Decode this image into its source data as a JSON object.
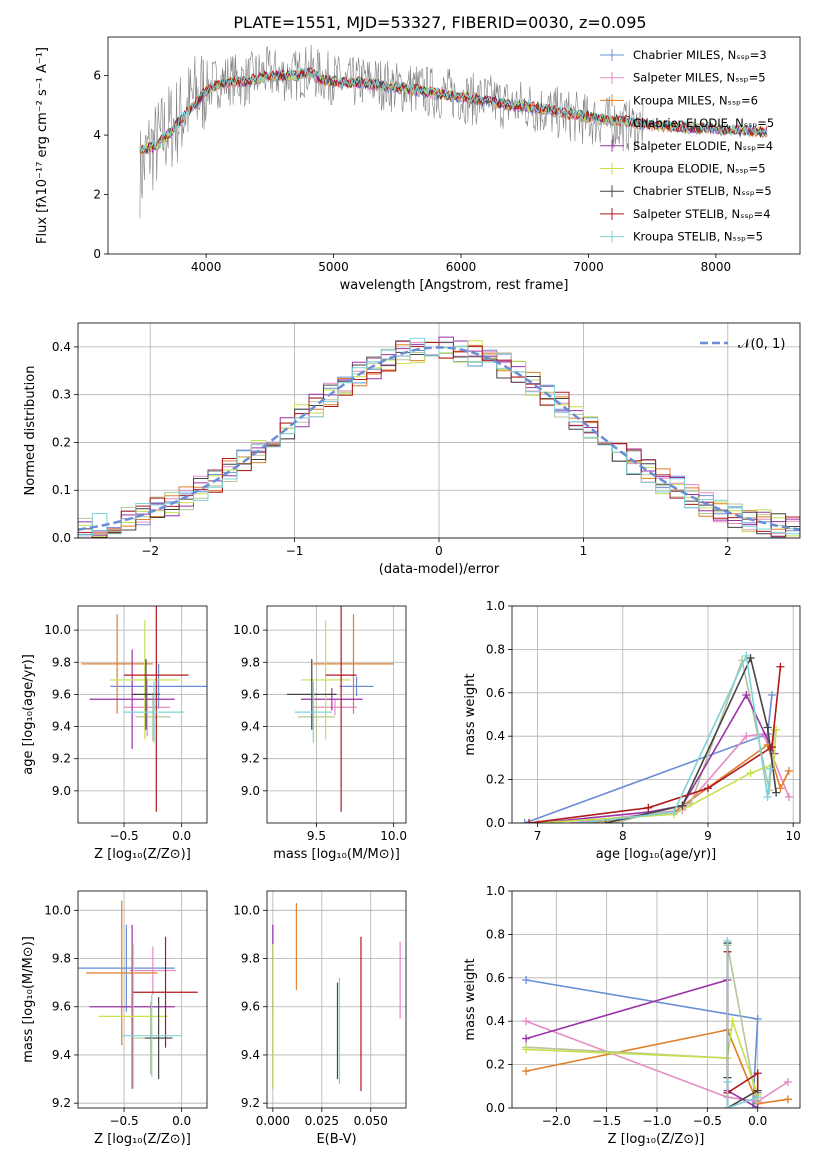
{
  "figure": {
    "title": "PLATE=1551, MJD=53327, FIBERID=0030, z=0.095",
    "colors": {
      "Chabrier MILES": "#6a8ed6",
      "Salpeter MILES": "#e68ac3",
      "Kroupa MILES": "#e07f2a",
      "Chabrier ELODIE": "#b8c59a",
      "Salpeter ELODIE": "#9b33a8",
      "Kroupa ELODIE": "#c6e04e",
      "Chabrier STELIB": "#444444",
      "Salpeter STELIB": "#b0191c",
      "Kroupa STELIB": "#7fd3d8"
    }
  },
  "chart_data": [
    {
      "id": "spectrum",
      "type": "line",
      "title": "PLATE=1551, MJD=53327, FIBERID=0030, z=0.095",
      "xlabel": "wavelength [Angstrom, rest frame]",
      "ylabel": "Flux [fλ10⁻¹⁷ erg cm⁻² s⁻¹ A⁻¹]",
      "xlim": [
        3230,
        8660
      ],
      "ylim": [
        0,
        7.3
      ],
      "xticks": [
        4000,
        5000,
        6000,
        7000,
        8000
      ],
      "yticks": [
        0,
        2,
        4,
        6
      ],
      "grid": false,
      "legend_position": "top-right",
      "legend": [
        "Chabrier MILES, Nₛₛₚ=3",
        "Salpeter MILES, Nₛₛₚ=5",
        "Kroupa MILES, Nₛₛₚ=6",
        "Chabrier ELODIE, Nₛₛₚ=5",
        "Salpeter ELODIE, Nₛₛₚ=4",
        "Kroupa ELODIE, Nₛₛₚ=5",
        "Chabrier STELIB, Nₛₛₚ=5",
        "Salpeter STELIB, Nₛₛₚ=4",
        "Kroupa STELIB, Nₛₛₚ=5"
      ],
      "data_series": {
        "name": "data",
        "color": "#808080",
        "x": [
          3500,
          3550,
          3600,
          3650,
          3700,
          3800,
          3900,
          4000,
          4100,
          4200,
          4300,
          4400,
          4500,
          4600,
          4700,
          4800,
          4900,
          5000,
          5100,
          5200,
          5300,
          5400,
          5500,
          5600,
          5700,
          5800,
          5900,
          6000,
          6100,
          6200,
          6300,
          6400,
          6500,
          6600,
          6700,
          6800,
          6900,
          7000,
          7100,
          7200,
          7300,
          7400
        ],
        "y": [
          2.8,
          3.5,
          3.6,
          3.9,
          4.2,
          4.6,
          5.2,
          5.6,
          5.8,
          5.9,
          5.8,
          6.0,
          6.1,
          6.0,
          6.0,
          6.2,
          6.0,
          5.9,
          5.7,
          5.8,
          5.8,
          5.7,
          5.6,
          5.6,
          5.5,
          5.4,
          5.4,
          5.3,
          5.2,
          5.2,
          5.1,
          5.0,
          5.0,
          4.9,
          4.8,
          4.7,
          4.6,
          4.5,
          4.5,
          4.4,
          4.3,
          4.3
        ]
      },
      "model_x": [
        3480,
        3600,
        3700,
        3800,
        3900,
        4000,
        4100,
        4200,
        4300,
        4400,
        4500,
        4600,
        4700,
        4800,
        4900,
        5000,
        5200,
        5400,
        5600,
        5800,
        6000,
        6200,
        6400,
        6600,
        6800,
        7000,
        7200,
        7400,
        7600,
        7800,
        8000,
        8200,
        8400
      ],
      "model_y": [
        3.5,
        3.6,
        4.0,
        4.5,
        5.0,
        5.5,
        5.7,
        5.8,
        5.8,
        5.9,
        6.0,
        6.0,
        6.0,
        6.1,
        5.9,
        5.8,
        5.75,
        5.65,
        5.55,
        5.4,
        5.3,
        5.15,
        5.0,
        4.9,
        4.75,
        4.6,
        4.5,
        4.4,
        4.3,
        4.25,
        4.2,
        4.15,
        4.1
      ]
    },
    {
      "id": "residuals",
      "type": "line",
      "xlabel": "(data-model)/error",
      "ylabel": "Normed distribution",
      "xlim": [
        -2.5,
        2.5
      ],
      "ylim": [
        0,
        0.45
      ],
      "xticks": [
        -2,
        -1,
        0,
        1,
        2
      ],
      "xticklabels": [
        "−2",
        "−1",
        "0",
        "1",
        "2"
      ],
      "yticks": [
        0.0,
        0.1,
        0.2,
        0.3,
        0.4
      ],
      "grid": true,
      "legend_position": "top-right",
      "legend": [
        "𝒩(0, 1)"
      ],
      "bin_width": 0.1
    },
    {
      "id": "age-vs-Z",
      "type": "scatter",
      "xlabel": "Z [log₁₀(Z/Z⊙)]",
      "ylabel": "age  [log₁₀(age/yr)]",
      "xlim": [
        -0.9,
        0.22
      ],
      "ylim": [
        8.8,
        10.15
      ],
      "xticks": [
        -0.5,
        0.0
      ],
      "xticklabels": [
        "−0.5",
        "0.0"
      ],
      "yticks": [
        9.0,
        9.2,
        9.4,
        9.6,
        9.8,
        10.0
      ],
      "grid": true,
      "points": [
        {
          "model": "Chabrier MILES",
          "x": -0.2,
          "xerr": 0.42,
          "y": 9.65,
          "yerr": 0.14
        },
        {
          "model": "Salpeter MILES",
          "x": -0.3,
          "xerr": 0.2,
          "y": 9.52,
          "yerr": 0.18
        },
        {
          "model": "Kroupa MILES",
          "x": -0.56,
          "xerr": 0.31,
          "y": 9.79,
          "yerr": 0.31
        },
        {
          "model": "Chabrier ELODIE",
          "x": -0.25,
          "xerr": 0.15,
          "y": 9.46,
          "yerr": 0.15
        },
        {
          "model": "Salpeter ELODIE",
          "x": -0.43,
          "xerr": 0.37,
          "y": 9.57,
          "yerr": 0.31
        },
        {
          "model": "Kroupa ELODIE",
          "x": -0.32,
          "xerr": 0.3,
          "y": 9.69,
          "yerr": 0.37
        },
        {
          "model": "Chabrier STELIB",
          "x": -0.31,
          "xerr": 0.12,
          "y": 9.6,
          "yerr": 0.22
        },
        {
          "model": "Salpeter STELIB",
          "x": -0.22,
          "xerr": 0.28,
          "y": 9.72,
          "yerr": 0.85
        },
        {
          "model": "Kroupa STELIB",
          "x": -0.24,
          "xerr": 0.26,
          "y": 9.49,
          "yerr": 0.19
        }
      ]
    },
    {
      "id": "age-vs-mass",
      "type": "scatter",
      "xlabel": "mass [log₁₀(M/M⊙)]",
      "xlim": [
        9.18,
        10.08
      ],
      "ylim": [
        8.8,
        10.15
      ],
      "xticks": [
        9.5,
        10.0
      ],
      "xticklabels": [
        "9.5",
        "10.0"
      ],
      "yticks": [
        9.0,
        9.2,
        9.4,
        9.6,
        9.8,
        10.0
      ],
      "grid": true,
      "points": [
        {
          "model": "Chabrier MILES",
          "x": 9.76,
          "xerr": 0.11,
          "y": 9.65,
          "yerr": 0.06
        },
        {
          "model": "Salpeter MILES",
          "x": 9.62,
          "xerr": 0.14,
          "y": 9.52,
          "yerr": 0.05
        },
        {
          "model": "Kroupa MILES",
          "x": 9.74,
          "xerr": 0.26,
          "y": 9.79,
          "yerr": 0.31
        },
        {
          "model": "Chabrier ELODIE",
          "x": 9.5,
          "xerr": 0.12,
          "y": 9.46,
          "yerr": 0.15
        },
        {
          "model": "Salpeter ELODIE",
          "x": 9.6,
          "xerr": 0.2,
          "y": 9.57,
          "yerr": 0.07
        },
        {
          "model": "Kroupa ELODIE",
          "x": 9.56,
          "xerr": 0.16,
          "y": 9.69,
          "yerr": 0.37
        },
        {
          "model": "Chabrier STELIB",
          "x": 9.47,
          "xerr": 0.16,
          "y": 9.6,
          "yerr": 0.22
        },
        {
          "model": "Salpeter STELIB",
          "x": 9.66,
          "xerr": 0.1,
          "y": 9.72,
          "yerr": 0.85
        },
        {
          "model": "Kroupa STELIB",
          "x": 9.48,
          "xerr": 0.12,
          "y": 9.49,
          "yerr": 0.19
        }
      ]
    },
    {
      "id": "massweight-vs-age",
      "type": "line",
      "xlabel": "age  [log₁₀(age/yr)]",
      "ylabel": "mass weight",
      "xlim": [
        6.7,
        10.08
      ],
      "ylim": [
        0,
        1.0
      ],
      "xticks": [
        7,
        8,
        9,
        10
      ],
      "yticks": [
        0.0,
        0.2,
        0.4,
        0.6,
        0.8,
        1.0
      ],
      "grid": true,
      "series": [
        {
          "model": "Chabrier MILES",
          "x": [
            6.85,
            9.7,
            9.75
          ],
          "y": [
            0.0,
            0.41,
            0.59
          ]
        },
        {
          "model": "Salpeter MILES",
          "x": [
            7.4,
            8.7,
            9.45,
            9.65,
            9.95
          ],
          "y": [
            0.0,
            0.06,
            0.4,
            0.41,
            0.12
          ]
        },
        {
          "model": "Kroupa MILES",
          "x": [
            7.6,
            8.6,
            9.7,
            9.85,
            9.95
          ],
          "y": [
            0.0,
            0.05,
            0.36,
            0.16,
            0.24
          ]
        },
        {
          "model": "Chabrier ELODIE",
          "x": [
            7.9,
            8.8,
            9.4,
            9.72,
            9.78
          ],
          "y": [
            0.0,
            0.09,
            0.75,
            0.15,
            0.43
          ]
        },
        {
          "model": "Salpeter ELODIE",
          "x": [
            7.0,
            8.3,
            8.7,
            9.45,
            9.78
          ],
          "y": [
            0.0,
            0.05,
            0.08,
            0.59,
            0.32
          ]
        },
        {
          "model": "Kroupa ELODIE",
          "x": [
            7.0,
            8.6,
            9.5,
            9.77,
            9.8
          ],
          "y": [
            0.0,
            0.04,
            0.23,
            0.27,
            0.43
          ]
        },
        {
          "model": "Chabrier STELIB",
          "x": [
            7.8,
            8.7,
            9.5,
            9.7,
            9.8
          ],
          "y": [
            0.0,
            0.08,
            0.76,
            0.44,
            0.14
          ]
        },
        {
          "model": "Salpeter STELIB",
          "x": [
            6.9,
            8.3,
            9.0,
            9.75,
            9.85
          ],
          "y": [
            0.0,
            0.07,
            0.16,
            0.35,
            0.72
          ]
        },
        {
          "model": "Kroupa STELIB",
          "x": [
            7.5,
            8.6,
            9.45,
            9.7,
            9.73
          ],
          "y": [
            0.0,
            0.05,
            0.77,
            0.12,
            0.25
          ]
        }
      ]
    },
    {
      "id": "mass-vs-Z",
      "type": "scatter",
      "xlabel": "Z [log₁₀(Z/Z⊙)]",
      "ylabel": "mass [log₁₀(M/M⊙)]",
      "xlim": [
        -0.9,
        0.22
      ],
      "ylim": [
        9.18,
        10.08
      ],
      "xticks": [
        -0.5,
        0.0
      ],
      "xticklabels": [
        "−0.5",
        "0.0"
      ],
      "yticks": [
        9.2,
        9.4,
        9.6,
        9.8,
        10.0
      ],
      "grid": true,
      "points": [
        {
          "model": "Chabrier MILES",
          "x": -0.48,
          "xerr": 0.42,
          "y": 9.76,
          "yerr": 0.18
        },
        {
          "model": "Salpeter MILES",
          "x": -0.25,
          "xerr": 0.2,
          "y": 9.75,
          "yerr": 0.1
        },
        {
          "model": "Kroupa MILES",
          "x": -0.52,
          "xerr": 0.31,
          "y": 9.74,
          "yerr": 0.3
        },
        {
          "model": "Chabrier ELODIE",
          "x": -0.27,
          "xerr": 0.15,
          "y": 9.47,
          "yerr": 0.15
        },
        {
          "model": "Salpeter ELODIE",
          "x": -0.43,
          "xerr": 0.37,
          "y": 9.6,
          "yerr": 0.34
        },
        {
          "model": "Kroupa ELODIE",
          "x": -0.42,
          "xerr": 0.3,
          "y": 9.56,
          "yerr": 0.3
        },
        {
          "model": "Chabrier STELIB",
          "x": -0.2,
          "xerr": 0.12,
          "y": 9.47,
          "yerr": 0.17
        },
        {
          "model": "Salpeter STELIB",
          "x": -0.14,
          "xerr": 0.28,
          "y": 9.66,
          "yerr": 0.23
        },
        {
          "model": "Kroupa STELIB",
          "x": -0.26,
          "xerr": 0.26,
          "y": 9.48,
          "yerr": 0.17
        }
      ]
    },
    {
      "id": "mass-vs-EBV",
      "type": "scatter",
      "xlabel": "E(B-V)",
      "xlim": [
        -0.003,
        0.068
      ],
      "ylim": [
        9.18,
        10.08
      ],
      "xticks": [
        0.0,
        0.025,
        0.05
      ],
      "xticklabels": [
        "0.000",
        "0.025",
        "0.050"
      ],
      "yticks": [
        9.2,
        9.4,
        9.6,
        9.8,
        10.0
      ],
      "grid": true,
      "points": [
        {
          "model": "Chabrier MILES",
          "x": 0.0,
          "y": 9.76,
          "yerr": 0.18
        },
        {
          "model": "Salpeter MILES",
          "x": 0.065,
          "y": 9.71,
          "yerr": 0.16
        },
        {
          "model": "Kroupa MILES",
          "x": 0.012,
          "y": 9.85,
          "yerr": 0.18
        },
        {
          "model": "Chabrier ELODIE",
          "x": 0.0,
          "y": 9.47,
          "yerr": 0.15
        },
        {
          "model": "Salpeter ELODIE",
          "x": 0.0,
          "y": 9.6,
          "yerr": 0.34
        },
        {
          "model": "Kroupa ELODIE",
          "x": 0.0,
          "y": 9.56,
          "yerr": 0.3
        },
        {
          "model": "Chabrier STELIB",
          "x": 0.033,
          "y": 9.5,
          "yerr": 0.2
        },
        {
          "model": "Salpeter STELIB",
          "x": 0.045,
          "y": 9.57,
          "yerr": 0.32
        },
        {
          "model": "Kroupa STELIB",
          "x": 0.034,
          "y": 9.5,
          "yerr": 0.22
        }
      ]
    },
    {
      "id": "massweight-vs-Z",
      "type": "line",
      "xlabel": "Z [log₁₀(Z/Z⊙)]",
      "ylabel": "mass weight",
      "xlim": [
        -2.44,
        0.42
      ],
      "ylim": [
        0,
        1.0
      ],
      "xticks": [
        -2.0,
        -1.5,
        -1.0,
        -0.5,
        0.0
      ],
      "xticklabels": [
        "−2.0",
        "−1.5",
        "−1.0",
        "−0.5",
        "0.0"
      ],
      "yticks": [
        0.0,
        0.2,
        0.4,
        0.6,
        0.8,
        1.0
      ],
      "grid": true,
      "series": [
        {
          "model": "Chabrier MILES",
          "x": [
            -2.3,
            0.0,
            -0.05,
            0.0
          ],
          "y": [
            0.59,
            0.41,
            0.0,
            0.07
          ]
        },
        {
          "model": "Salpeter MILES",
          "x": [
            -2.3,
            -0.3,
            0.0,
            0.3
          ],
          "y": [
            0.4,
            0.05,
            0.03,
            0.12
          ]
        },
        {
          "model": "Kroupa MILES",
          "x": [
            -2.3,
            -0.3,
            0.0,
            0.3
          ],
          "y": [
            0.17,
            0.36,
            0.02,
            0.04
          ]
        },
        {
          "model": "Chabrier ELODIE",
          "x": [
            -2.3,
            -0.3,
            -0.3,
            0.0
          ],
          "y": [
            0.28,
            0.23,
            0.75,
            0.0
          ]
        },
        {
          "model": "Salpeter ELODIE",
          "x": [
            -2.3,
            -0.3,
            -0.3,
            0.0
          ],
          "y": [
            0.32,
            0.59,
            0.08,
            0.0
          ]
        },
        {
          "model": "Kroupa ELODIE",
          "x": [
            -2.3,
            -0.3,
            -0.25,
            0.0
          ],
          "y": [
            0.27,
            0.23,
            0.4,
            0.06
          ]
        },
        {
          "model": "Chabrier STELIB",
          "x": [
            -0.3,
            -0.3,
            -0.3,
            0.0
          ],
          "y": [
            0.76,
            0.14,
            0.0,
            0.08
          ]
        },
        {
          "model": "Salpeter STELIB",
          "x": [
            -0.3,
            -0.3,
            0.0,
            0.0
          ],
          "y": [
            0.72,
            0.07,
            0.16,
            0.05
          ]
        },
        {
          "model": "Kroupa STELIB",
          "x": [
            -0.3,
            -0.3,
            -0.3,
            0.0
          ],
          "y": [
            0.77,
            0.12,
            0.0,
            0.05
          ]
        }
      ]
    }
  ]
}
